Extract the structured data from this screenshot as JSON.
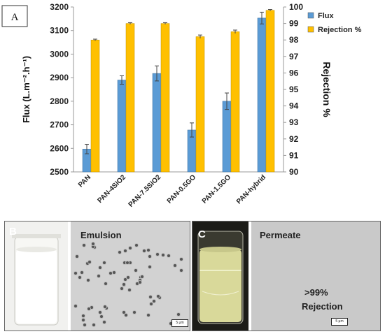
{
  "panel_a": {
    "label": "A"
  },
  "chart_data": {
    "type": "bar",
    "categories": [
      "PAN",
      "PAN-4SiO2",
      "PAN-7.5SiO2",
      "PAN-0.5GO",
      "PAN-1.5GO",
      "PAN-hybrid"
    ],
    "series": [
      {
        "name": "Flux",
        "axis": "left",
        "color": "#5b9bd5",
        "values": [
          2597,
          2890,
          2918,
          2678,
          2800,
          3153
        ],
        "errors": [
          20,
          18,
          32,
          30,
          35,
          25
        ]
      },
      {
        "name": "Rejection %",
        "axis": "right",
        "color": "#ffc000",
        "values": [
          98.0,
          99.0,
          99.0,
          98.2,
          98.5,
          99.8
        ],
        "errors": [
          0.05,
          0.05,
          0.05,
          0.1,
          0.1,
          0.05
        ]
      }
    ],
    "ylabel": "Flux (L.m⁻².h⁻¹)",
    "ylabel_right": "Rejection %",
    "ylim": [
      2500,
      3200
    ],
    "ylim_right": [
      90,
      100
    ],
    "yticks": [
      "2500",
      "2600",
      "2700",
      "2800",
      "2900",
      "3000",
      "3100",
      "3200"
    ],
    "yticks_right": [
      "90",
      "91",
      "92",
      "93",
      "94",
      "95",
      "96",
      "97",
      "98",
      "99",
      "100"
    ],
    "legend_position": "top-right",
    "gridlines": false
  },
  "panel_b": {
    "label": "B",
    "caption": "Emulsion",
    "scale": "5 μm"
  },
  "panel_c": {
    "label": "C",
    "caption": "Permeate",
    "result_value": ">99%",
    "result_label": "Rejection",
    "scale": "5 μm"
  }
}
